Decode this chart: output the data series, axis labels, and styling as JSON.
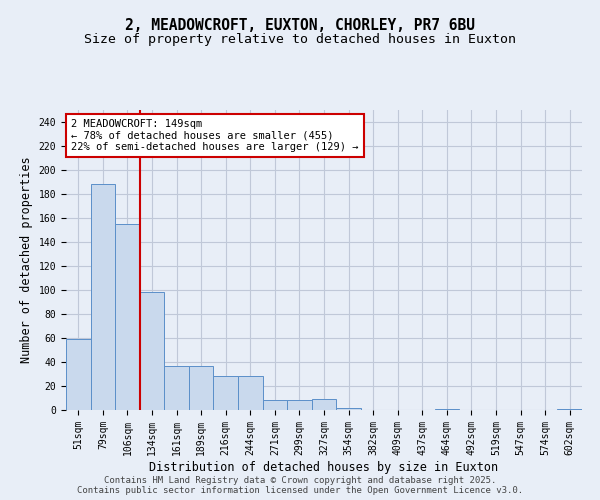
{
  "title_line1": "2, MEADOWCROFT, EUXTON, CHORLEY, PR7 6BU",
  "title_line2": "Size of property relative to detached houses in Euxton",
  "xlabel": "Distribution of detached houses by size in Euxton",
  "ylabel": "Number of detached properties",
  "categories": [
    "51sqm",
    "79sqm",
    "106sqm",
    "134sqm",
    "161sqm",
    "189sqm",
    "216sqm",
    "244sqm",
    "271sqm",
    "299sqm",
    "327sqm",
    "354sqm",
    "382sqm",
    "409sqm",
    "437sqm",
    "464sqm",
    "492sqm",
    "519sqm",
    "547sqm",
    "574sqm",
    "602sqm"
  ],
  "values": [
    59,
    188,
    155,
    98,
    37,
    37,
    28,
    28,
    8,
    8,
    9,
    2,
    0,
    0,
    0,
    1,
    0,
    0,
    0,
    0,
    1
  ],
  "bar_color": "#c9d9ed",
  "bar_edge_color": "#5b8fc9",
  "grid_color": "#c0c8d8",
  "background_color": "#e8eef7",
  "vline_x_index": 3,
  "vline_color": "#cc0000",
  "annotation_text": "2 MEADOWCROFT: 149sqm\n← 78% of detached houses are smaller (455)\n22% of semi-detached houses are larger (129) →",
  "annotation_box_color": "#ffffff",
  "annotation_box_edge_color": "#cc0000",
  "ylim": [
    0,
    250
  ],
  "yticks": [
    0,
    20,
    40,
    60,
    80,
    100,
    120,
    140,
    160,
    180,
    200,
    220,
    240
  ],
  "footer_line1": "Contains HM Land Registry data © Crown copyright and database right 2025.",
  "footer_line2": "Contains public sector information licensed under the Open Government Licence v3.0.",
  "title_fontsize": 10.5,
  "subtitle_fontsize": 9.5,
  "axis_label_fontsize": 8.5,
  "tick_fontsize": 7,
  "annotation_fontsize": 7.5,
  "footer_fontsize": 6.5
}
